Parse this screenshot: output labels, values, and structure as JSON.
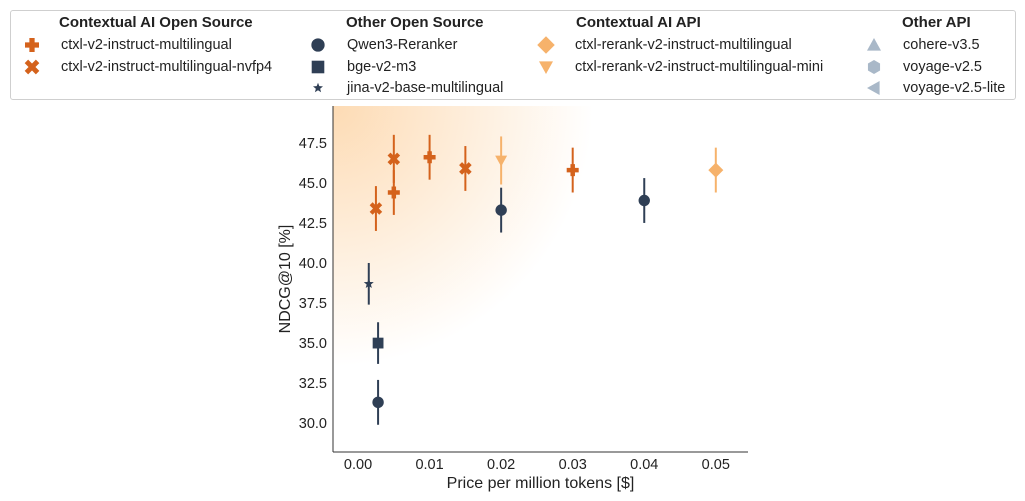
{
  "colors": {
    "ctx_open": "#d4621c",
    "other_open": "#2f3f55",
    "ctx_api": "#f6b26b",
    "other_api": "#a9b8c8",
    "highlight": "#fddbb4"
  },
  "legend": {
    "groups": [
      {
        "title": "Contextual AI Open Source",
        "color": "ctx_open",
        "items": [
          {
            "label": "ctxl-v2-instruct-multilingual",
            "marker": "plus"
          },
          {
            "label": "ctxl-v2-instruct-multilingual-nvfp4",
            "marker": "x"
          }
        ]
      },
      {
        "title": "Other Open Source",
        "color": "other_open",
        "items": [
          {
            "label": "Qwen3-Reranker",
            "marker": "circle"
          },
          {
            "label": "bge-v2-m3",
            "marker": "square"
          },
          {
            "label": "jina-v2-base-multilingual",
            "marker": "star"
          }
        ]
      },
      {
        "title": "Contextual AI API",
        "color": "ctx_api",
        "items": [
          {
            "label": "ctxl-rerank-v2-instruct-multilingual",
            "marker": "diamond"
          },
          {
            "label": "ctxl-rerank-v2-instruct-multilingual-mini",
            "marker": "triangle-down"
          }
        ]
      },
      {
        "title": "Other API",
        "color": "other_api",
        "items": [
          {
            "label": "cohere-v3.5",
            "marker": "triangle-up"
          },
          {
            "label": "voyage-v2.5",
            "marker": "hexagon"
          },
          {
            "label": "voyage-v2.5-lite",
            "marker": "triangle-left"
          }
        ]
      }
    ]
  },
  "chart_data": {
    "type": "scatter",
    "xlabel": "Price per million tokens [$]",
    "ylabel": "NDCG@10 [%]",
    "xlim": [
      -0.0035,
      0.0545
    ],
    "ylim": [
      28.2,
      49.8
    ],
    "xticks": [
      0.0,
      0.01,
      0.02,
      0.03,
      0.04,
      0.05
    ],
    "xtick_labels": [
      "0.00",
      "0.01",
      "0.02",
      "0.03",
      "0.04",
      "0.05"
    ],
    "yticks": [
      30.0,
      32.5,
      35.0,
      37.5,
      40.0,
      42.5,
      45.0,
      47.5
    ],
    "ytick_labels": [
      "30.0",
      "32.5",
      "35.0",
      "37.5",
      "40.0",
      "42.5",
      "45.0",
      "47.5"
    ],
    "grid": false,
    "legend_position": "top",
    "points": [
      {
        "series": "ctxl-v2-instruct-multilingual",
        "x": 0.005,
        "y": 44.4,
        "err": 1.4,
        "marker": "plus",
        "color": "ctx_open"
      },
      {
        "series": "ctxl-v2-instruct-multilingual",
        "x": 0.01,
        "y": 46.6,
        "err": 1.4,
        "marker": "plus",
        "color": "ctx_open"
      },
      {
        "series": "ctxl-v2-instruct-multilingual",
        "x": 0.03,
        "y": 45.8,
        "err": 1.4,
        "marker": "plus",
        "color": "ctx_open"
      },
      {
        "series": "ctxl-v2-instruct-multilingual-nvfp4",
        "x": 0.0025,
        "y": 43.4,
        "err": 1.4,
        "marker": "x",
        "color": "ctx_open"
      },
      {
        "series": "ctxl-v2-instruct-multilingual-nvfp4",
        "x": 0.005,
        "y": 46.5,
        "err": 1.5,
        "marker": "x",
        "color": "ctx_open"
      },
      {
        "series": "ctxl-v2-instruct-multilingual-nvfp4",
        "x": 0.015,
        "y": 45.9,
        "err": 1.4,
        "marker": "x",
        "color": "ctx_open"
      },
      {
        "series": "Qwen3-Reranker",
        "x": 0.0028,
        "y": 31.3,
        "err": 1.4,
        "marker": "circle",
        "color": "other_open"
      },
      {
        "series": "Qwen3-Reranker",
        "x": 0.02,
        "y": 43.3,
        "err": 1.4,
        "marker": "circle",
        "color": "other_open"
      },
      {
        "series": "Qwen3-Reranker",
        "x": 0.04,
        "y": 43.9,
        "err": 1.4,
        "marker": "circle",
        "color": "other_open"
      },
      {
        "series": "bge-v2-m3",
        "x": 0.0028,
        "y": 35.0,
        "err": 1.3,
        "marker": "square",
        "color": "other_open"
      },
      {
        "series": "jina-v2-base-multilingual",
        "x": 0.0015,
        "y": 38.7,
        "err": 1.3,
        "marker": "star",
        "color": "other_open"
      },
      {
        "series": "ctxl-rerank-v2-instruct-multilingual-mini",
        "x": 0.02,
        "y": 46.4,
        "err": 1.5,
        "marker": "triangle-down",
        "color": "ctx_api"
      },
      {
        "series": "ctxl-rerank-v2-instruct-multilingual",
        "x": 0.05,
        "y": 45.8,
        "err": 1.4,
        "marker": "diamond",
        "color": "ctx_api"
      }
    ]
  }
}
